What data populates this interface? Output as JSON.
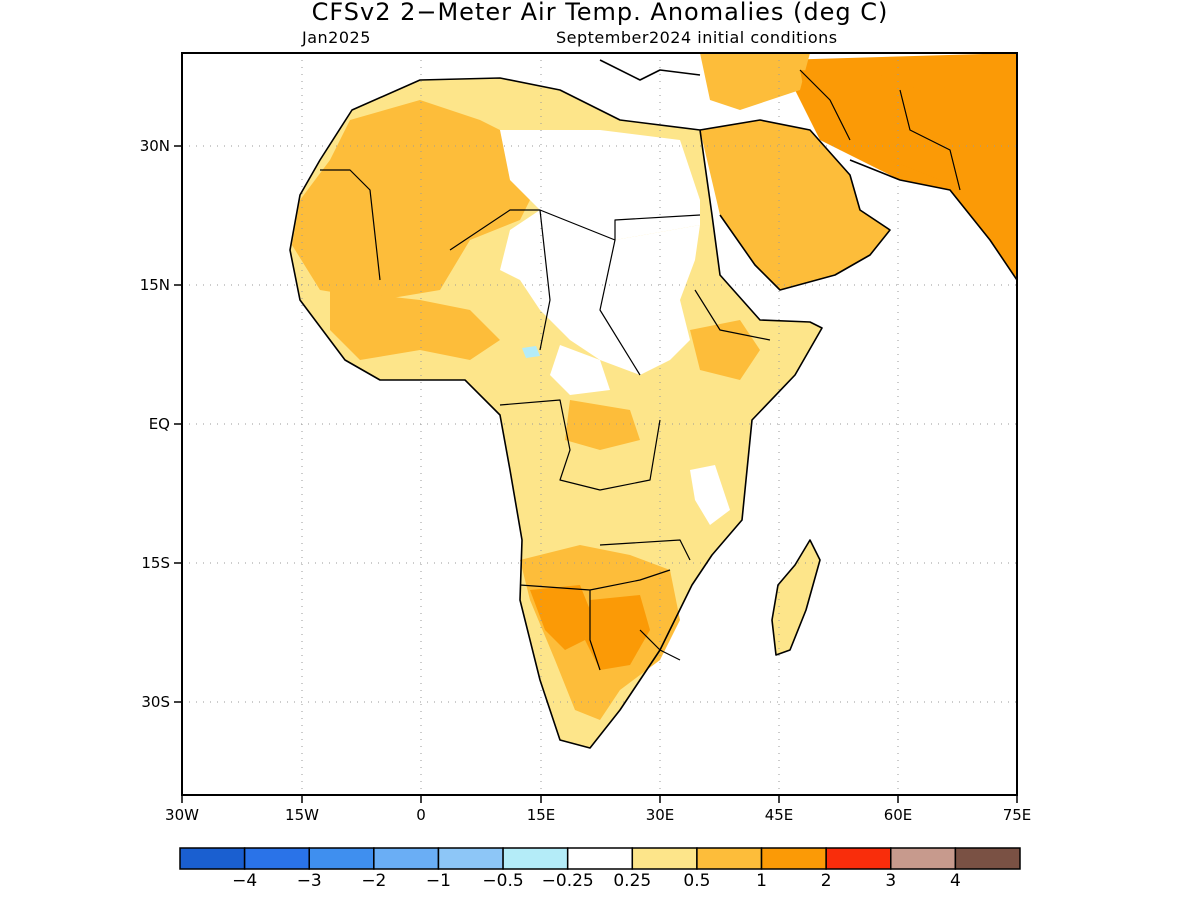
{
  "header": {
    "title": "CFSv2 2−Meter Air Temp. Anomalies (deg C)",
    "valid_month": "Jan2025",
    "init": "September2024 initial conditions"
  },
  "map": {
    "region": "Africa and Arabian Peninsula",
    "lon_ticks": [
      "30W",
      "15W",
      "0",
      "15E",
      "30E",
      "45E",
      "60E",
      "75E"
    ],
    "lat_ticks": [
      "30N",
      "15N",
      "EQ",
      "15S",
      "30S"
    ],
    "grid": true
  },
  "colorbar": {
    "colors": [
      "#1a5fd0",
      "#2a73e8",
      "#3f8fef",
      "#6aaef5",
      "#8dc6f7",
      "#b4ecf8",
      "#ffffff",
      "#fde58a",
      "#fdbd3a",
      "#fb9a06",
      "#f92d0b",
      "#c79a8d",
      "#7a5144"
    ],
    "labels": [
      "−4",
      "−3",
      "−2",
      "−1",
      "−0.5",
      "−0.25",
      "0.25",
      "0.5",
      "1",
      "2",
      "3",
      "4"
    ]
  },
  "colors": {
    "weak_warm": "#fde58a",
    "warm": "#fdbd3a",
    "strong_warm": "#fb9a06",
    "near_zero": "#ffffff",
    "weak_cold": "#b4ecf8"
  }
}
